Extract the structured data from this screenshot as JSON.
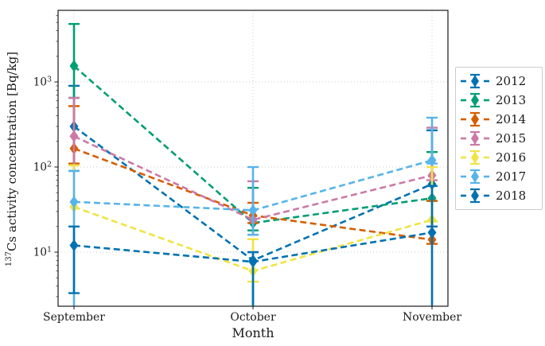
{
  "figure": {
    "ylabel_superscript": "137",
    "ylabel_rest": "Cs activity concentration [Bq/kg]",
    "xlabel": "Month"
  },
  "chart_data": {
    "type": "line",
    "subtype": "errorbar-dashed-diamond",
    "title": "",
    "xlabel": "Month",
    "ylabel": "137Cs activity concentration [Bq/kg]",
    "yscale": "log",
    "ylim": [
      2.3,
      7000
    ],
    "categories": [
      "September",
      "October",
      "November"
    ],
    "y_ticks": [
      {
        "value": 10,
        "base": "10",
        "exp": "1"
      },
      {
        "value": 100,
        "base": "10",
        "exp": "2"
      },
      {
        "value": 1000,
        "base": "10",
        "exp": "3"
      }
    ],
    "grid": true,
    "legend_position": "center right, outside axes",
    "marker": "thin-diamond",
    "linestyle": "dashed",
    "series": [
      {
        "name": "2012",
        "color": "#0072B2",
        "values": [
          300,
          8,
          63
        ],
        "err_lo": [
          90,
          null,
          20
        ],
        "err_hi": [
          900,
          10,
          270
        ]
      },
      {
        "name": "2013",
        "color": "#009E73",
        "values": [
          1540,
          22,
          43
        ],
        "err_lo": [
          650,
          18,
          40
        ],
        "err_hi": [
          4800,
          57,
          150
        ]
      },
      {
        "name": "2014",
        "color": "#D55E00",
        "values": [
          165,
          27,
          14
        ],
        "err_lo": [
          110,
          22,
          12.5
        ],
        "err_hi": [
          520,
          38,
          40
        ]
      },
      {
        "name": "2015",
        "color": "#CC79A7",
        "values": [
          230,
          24,
          80
        ],
        "err_lo": [
          105,
          16,
          70
        ],
        "err_hi": [
          650,
          68,
          290
        ]
      },
      {
        "name": "2016",
        "color": "#F0E442",
        "values": [
          34,
          6,
          24
        ],
        "err_lo": [
          20,
          4.5,
          23
        ],
        "err_hi": [
          105,
          14.2,
          100
        ]
      },
      {
        "name": "2017",
        "color": "#56B4E9",
        "values": [
          39,
          31,
          120
        ],
        "err_lo": [
          null,
          16,
          110
        ],
        "err_hi": [
          90,
          100,
          380
        ]
      },
      {
        "name": "2018",
        "color": "#0072B2",
        "values": [
          12,
          7.7,
          17
        ],
        "err_lo": [
          3.3,
          null,
          null
        ],
        "err_hi": [
          20,
          10,
          60
        ]
      }
    ]
  }
}
